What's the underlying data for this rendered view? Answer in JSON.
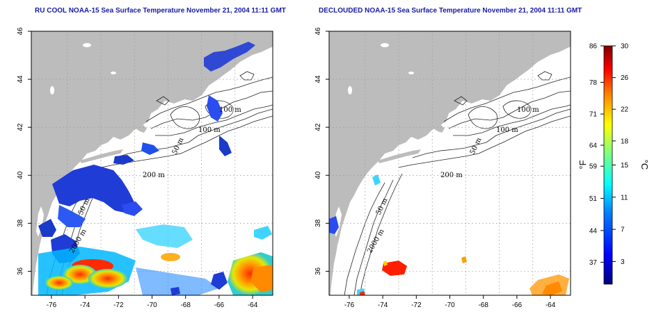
{
  "panels": [
    {
      "id": "left",
      "title": "RU COOL NOAA-15 Sea Surface Temperature November 21, 2004 11:11 GMT"
    },
    {
      "id": "right",
      "title": "DECLOUDED NOAA-15 Sea Surface Temperature November 21, 2004 11:11 GMT"
    }
  ],
  "map": {
    "lon_ticks": [
      "-76",
      "-74",
      "-72",
      "-70",
      "-68",
      "-66",
      "-64"
    ],
    "lat_ticks": [
      "36",
      "38",
      "40",
      "42",
      "44",
      "46"
    ],
    "lon_range": [
      -77.2,
      -62.8
    ],
    "lat_range": [
      35.0,
      46.0
    ],
    "contour_labels": [
      "100 m",
      "100 m",
      "50 m",
      "200 m",
      "50 m",
      "2000 m"
    ],
    "colors": {
      "land": "#bcbcbc",
      "ocean": "#ffffff",
      "contour": "#222222",
      "grid": "#9a9a9a"
    }
  },
  "colorbar": {
    "fahrenheit_label": "°F",
    "celsius_label": "°C",
    "fahrenheit_ticks": [
      "86",
      "78",
      "71",
      "64",
      "59",
      "51",
      "44",
      "37"
    ],
    "celsius_ticks": [
      "30",
      "26",
      "22",
      "18",
      "15",
      "11",
      "7",
      "3"
    ],
    "gradient": [
      "#00007f",
      "#0000ff",
      "#007fff",
      "#00ffff",
      "#7fff7f",
      "#ffff00",
      "#ff7f00",
      "#ff0000",
      "#7f0000"
    ]
  }
}
